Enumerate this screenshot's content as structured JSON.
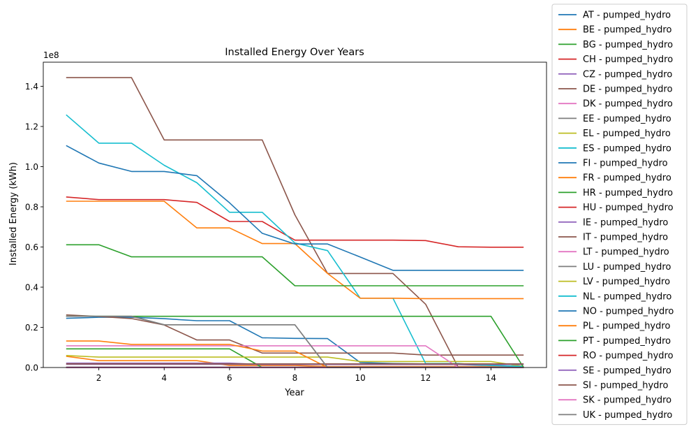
{
  "chart_data": {
    "type": "line",
    "title": "Installed Energy Over Years",
    "xlabel": "Year",
    "ylabel": "Installed Energy (kWh)",
    "y_scale_label": "1e8",
    "xlim": [
      0.3,
      15.7
    ],
    "ylim": [
      0,
      1.52
    ],
    "x_ticks": [
      2,
      4,
      6,
      8,
      10,
      12,
      14
    ],
    "x_tick_labels": [
      "2",
      "4",
      "6",
      "8",
      "10",
      "12",
      "14"
    ],
    "y_ticks": [
      0.0,
      0.2,
      0.4,
      0.6,
      0.8,
      1.0,
      1.2,
      1.4
    ],
    "y_tick_labels": [
      "0.0",
      "0.2",
      "0.4",
      "0.6",
      "0.8",
      "1.0",
      "1.2",
      "1.4"
    ],
    "grid": false,
    "legend_position": "outside-right",
    "x": [
      1,
      2,
      3,
      4,
      5,
      6,
      7,
      8,
      9,
      10,
      11,
      12,
      13,
      14,
      15
    ],
    "series": [
      {
        "name": "AT - pumped_hydro",
        "color": "#1f77b4",
        "values": [
          0.245,
          0.25,
          0.25,
          0.243,
          0.233,
          0.233,
          0.148,
          0.145,
          0.144,
          0.025,
          0.02,
          0.018,
          0.015,
          0.01,
          0.005
        ]
      },
      {
        "name": "BE - pumped_hydro",
        "color": "#ff7f0e",
        "values": [
          0.056,
          0.034,
          0.034,
          0.034,
          0.034,
          0.01,
          0.01,
          0.01,
          0.005,
          0.005,
          0.005,
          0.005,
          0.005,
          0.005,
          0.005
        ]
      },
      {
        "name": "BG - pumped_hydro",
        "color": "#2ca02c",
        "values": [
          0.093,
          0.093,
          0.093,
          0.093,
          0.093,
          0.093,
          0.0,
          0.0,
          0.0,
          0.0,
          0.0,
          0.0,
          0.0,
          0.0,
          0.0
        ]
      },
      {
        "name": "CH - pumped_hydro",
        "color": "#d62728",
        "values": [
          0.849,
          0.836,
          0.836,
          0.836,
          0.822,
          0.727,
          0.727,
          0.634,
          0.634,
          0.634,
          0.634,
          0.632,
          0.601,
          0.599,
          0.599
        ]
      },
      {
        "name": "CZ - pumped_hydro",
        "color": "#9467bd",
        "values": [
          0.022,
          0.022,
          0.022,
          0.022,
          0.022,
          0.022,
          0.015,
          0.015,
          0.015,
          0.015,
          0.015,
          0.015,
          0.015,
          0.015,
          0.015
        ]
      },
      {
        "name": "DE - pumped_hydro",
        "color": "#8c564b",
        "values": [
          1.443,
          1.443,
          1.443,
          1.133,
          1.133,
          1.133,
          1.133,
          0.76,
          0.468,
          0.468,
          0.468,
          0.315,
          0.0,
          0.0,
          0.0
        ]
      },
      {
        "name": "DK - pumped_hydro",
        "color": "#e377c2",
        "values": [
          0.002,
          0.002,
          0.002,
          0.002,
          0.002,
          0.002,
          0.002,
          0.002,
          0.002,
          0.002,
          0.002,
          0.002,
          0.002,
          0.002,
          0.002
        ]
      },
      {
        "name": "EE - pumped_hydro",
        "color": "#7f7f7f",
        "values": [
          0.002,
          0.002,
          0.002,
          0.002,
          0.002,
          0.002,
          0.002,
          0.002,
          0.002,
          0.002,
          0.002,
          0.002,
          0.002,
          0.002,
          0.002
        ]
      },
      {
        "name": "EL - pumped_hydro",
        "color": "#bcbd22",
        "values": [
          0.06,
          0.052,
          0.052,
          0.052,
          0.052,
          0.052,
          0.052,
          0.052,
          0.052,
          0.03,
          0.03,
          0.03,
          0.03,
          0.03,
          0.005
        ]
      },
      {
        "name": "ES - pumped_hydro",
        "color": "#17becf",
        "values": [
          1.258,
          1.117,
          1.117,
          1.007,
          0.92,
          0.773,
          0.773,
          0.62,
          0.582,
          0.345,
          0.345,
          0.02,
          0.02,
          0.01,
          0.005
        ]
      },
      {
        "name": "FI - pumped_hydro",
        "color": "#1f77b4",
        "values": [
          0.0,
          0.0,
          0.0,
          0.0,
          0.0,
          0.0,
          0.0,
          0.0,
          0.0,
          0.0,
          0.0,
          0.0,
          0.0,
          0.0,
          0.0
        ]
      },
      {
        "name": "FR - pumped_hydro",
        "color": "#ff7f0e",
        "values": [
          0.828,
          0.828,
          0.828,
          0.828,
          0.695,
          0.695,
          0.617,
          0.617,
          0.468,
          0.345,
          0.345,
          0.343,
          0.343,
          0.343,
          0.343
        ]
      },
      {
        "name": "HR - pumped_hydro",
        "color": "#2ca02c",
        "values": [
          0.611,
          0.611,
          0.551,
          0.551,
          0.551,
          0.551,
          0.551,
          0.407,
          0.407,
          0.407,
          0.407,
          0.407,
          0.407,
          0.407,
          0.407
        ]
      },
      {
        "name": "HU - pumped_hydro",
        "color": "#d62728",
        "values": [
          0.0,
          0.0,
          0.0,
          0.0,
          0.0,
          0.0,
          0.0,
          0.0,
          0.0,
          0.0,
          0.0,
          0.0,
          0.0,
          0.0,
          0.0
        ]
      },
      {
        "name": "IE - pumped_hydro",
        "color": "#9467bd",
        "values": [
          0.016,
          0.016,
          0.016,
          0.016,
          0.016,
          0.016,
          0.016,
          0.016,
          0.016,
          0.016,
          0.016,
          0.016,
          0.016,
          0.016,
          0.016
        ]
      },
      {
        "name": "IT - pumped_hydro",
        "color": "#8c564b",
        "values": [
          0.262,
          0.254,
          0.244,
          0.212,
          0.137,
          0.137,
          0.072,
          0.072,
          0.072,
          0.072,
          0.072,
          0.062,
          0.062,
          0.062,
          0.062
        ]
      },
      {
        "name": "LT - pumped_hydro",
        "color": "#e377c2",
        "values": [
          0.108,
          0.108,
          0.108,
          0.108,
          0.108,
          0.108,
          0.108,
          0.108,
          0.108,
          0.108,
          0.108,
          0.108,
          0.0,
          0.0,
          0.0
        ]
      },
      {
        "name": "LU - pumped_hydro",
        "color": "#7f7f7f",
        "values": [
          0.255,
          0.255,
          0.255,
          0.213,
          0.213,
          0.213,
          0.213,
          0.213,
          0.0,
          0.0,
          0.0,
          0.0,
          0.0,
          0.0,
          0.0
        ]
      },
      {
        "name": "LV - pumped_hydro",
        "color": "#bcbd22",
        "values": [
          0.0,
          0.0,
          0.0,
          0.0,
          0.0,
          0.0,
          0.0,
          0.0,
          0.0,
          0.0,
          0.0,
          0.0,
          0.0,
          0.0,
          0.0
        ]
      },
      {
        "name": "NL - pumped_hydro",
        "color": "#17becf",
        "values": [
          0.0,
          0.0,
          0.0,
          0.0,
          0.0,
          0.0,
          0.0,
          0.0,
          0.0,
          0.0,
          0.0,
          0.0,
          0.0,
          0.0,
          0.0
        ]
      },
      {
        "name": "NO - pumped_hydro",
        "color": "#1f77b4",
        "values": [
          1.105,
          1.018,
          0.976,
          0.976,
          0.955,
          0.82,
          0.668,
          0.615,
          0.615,
          0.55,
          0.484,
          0.484,
          0.484,
          0.484,
          0.484
        ]
      },
      {
        "name": "PL - pumped_hydro",
        "color": "#ff7f0e",
        "values": [
          0.132,
          0.132,
          0.115,
          0.115,
          0.115,
          0.115,
          0.082,
          0.082,
          0.0,
          0.0,
          0.0,
          0.0,
          0.0,
          0.0,
          0.0
        ]
      },
      {
        "name": "PT - pumped_hydro",
        "color": "#2ca02c",
        "values": [
          0.255,
          0.255,
          0.255,
          0.255,
          0.255,
          0.255,
          0.255,
          0.255,
          0.255,
          0.255,
          0.255,
          0.255,
          0.255,
          0.255,
          0.0
        ]
      },
      {
        "name": "RO - pumped_hydro",
        "color": "#d62728",
        "values": [
          0.0,
          0.0,
          0.0,
          0.0,
          0.0,
          0.0,
          0.0,
          0.0,
          0.0,
          0.0,
          0.0,
          0.0,
          0.0,
          0.0,
          0.0
        ]
      },
      {
        "name": "SE - pumped_hydro",
        "color": "#9467bd",
        "values": [
          0.0,
          0.0,
          0.0,
          0.0,
          0.0,
          0.0,
          0.0,
          0.0,
          0.0,
          0.0,
          0.0,
          0.0,
          0.0,
          0.0,
          0.0
        ]
      },
      {
        "name": "SI - pumped_hydro",
        "color": "#8c564b",
        "values": [
          0.018,
          0.018,
          0.018,
          0.018,
          0.018,
          0.018,
          0.018,
          0.018,
          0.018,
          0.018,
          0.018,
          0.018,
          0.018,
          0.018,
          0.018
        ]
      },
      {
        "name": "SK - pumped_hydro",
        "color": "#e377c2",
        "values": [
          0.0,
          0.0,
          0.0,
          0.0,
          0.0,
          0.0,
          0.0,
          0.0,
          0.0,
          0.0,
          0.0,
          0.0,
          0.0,
          0.0,
          0.0
        ]
      },
      {
        "name": "UK - pumped_hydro",
        "color": "#7f7f7f",
        "values": [
          0.255,
          0.255,
          0.255,
          0.213,
          0.213,
          0.213,
          0.213,
          0.213,
          0.0,
          0.0,
          0.0,
          0.0,
          0.0,
          0.0,
          0.0
        ]
      }
    ]
  }
}
